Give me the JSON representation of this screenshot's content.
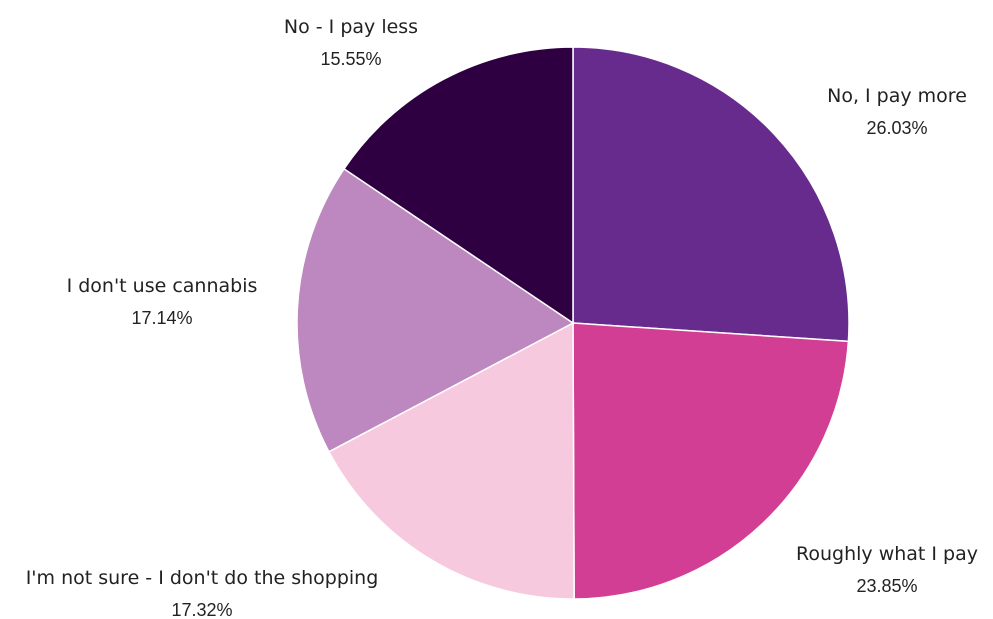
{
  "chart_data": {
    "type": "pie",
    "title": "",
    "slices": [
      {
        "label": "No, I pay more",
        "value_label": "26.03%",
        "value": 26.03,
        "color": "#672B8E"
      },
      {
        "label": "Roughly what I pay",
        "value_label": "23.85%",
        "value": 23.85,
        "color": "#D23E94"
      },
      {
        "label": "I'm not sure - I don't do the shopping",
        "value_label": "17.32%",
        "value": 17.32,
        "color": "#F7C9DE"
      },
      {
        "label": "I don't use cannabis",
        "value_label": "17.14%",
        "value": 17.14,
        "color": "#BC88BF"
      },
      {
        "label": "No - I pay less",
        "value_label": "15.55%",
        "value": 15.55,
        "color": "#2E0042"
      }
    ]
  }
}
